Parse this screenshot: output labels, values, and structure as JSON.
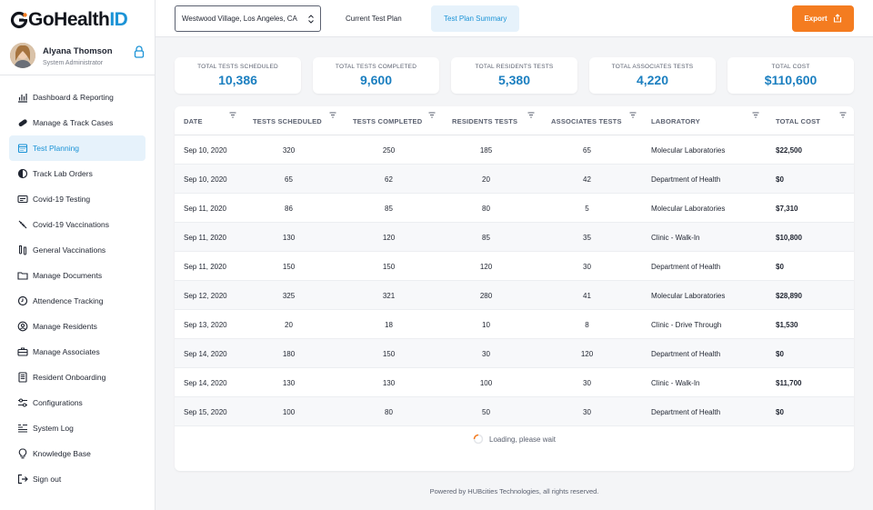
{
  "brand": {
    "logo_part1": "GoHealth",
    "logo_part2": "ID",
    "accent": "#1b93d6",
    "orange": "#f47c20"
  },
  "profile": {
    "name": "Alyana Thomson",
    "role": "System Administrator"
  },
  "sidebar": {
    "items": [
      {
        "label": "Dashboard & Reporting",
        "icon": "chart-icon"
      },
      {
        "label": "Manage & Track Cases",
        "icon": "pill-icon"
      },
      {
        "label": "Test Planning",
        "icon": "calendar-icon",
        "active": true
      },
      {
        "label": "Track Lab Orders",
        "icon": "half-circle-icon"
      },
      {
        "label": "Covid-19 Testing",
        "icon": "card-icon"
      },
      {
        "label": "Covid-19 Vaccinations",
        "icon": "syringe-icon"
      },
      {
        "label": "General Vaccinations",
        "icon": "vial-icon"
      },
      {
        "label": "Manage Documents",
        "icon": "folder-icon"
      },
      {
        "label": "Attendence Tracking",
        "icon": "clock-icon"
      },
      {
        "label": "Manage Residents",
        "icon": "user-circle-icon"
      },
      {
        "label": "Manage Associates",
        "icon": "briefcase-icon"
      },
      {
        "label": "Resident Onboarding",
        "icon": "document-icon"
      },
      {
        "label": "Configurations",
        "icon": "settings-icon"
      },
      {
        "label": "System Log",
        "icon": "log-icon"
      },
      {
        "label": "Knowledge Base",
        "icon": "bulb-icon"
      },
      {
        "label": "Sign out",
        "icon": "signout-icon"
      }
    ]
  },
  "topbar": {
    "location": "Westwood Village, Los Angeles, CA",
    "tabs": [
      "Current Test Plan",
      "Test Plan Summary"
    ],
    "export_label": "Export"
  },
  "stats": [
    {
      "label": "TOTAL TESTS SCHEDULED",
      "value": "10,386"
    },
    {
      "label": "TOTAL TESTS COMPLETED",
      "value": "9,600"
    },
    {
      "label": "TOTAL RESIDENTS TESTS",
      "value": "5,380"
    },
    {
      "label": "TOTAL ASSOCIATES TESTS",
      "value": "4,220"
    },
    {
      "label": "TOTAL COST",
      "value": "$110,600"
    }
  ],
  "table": {
    "headers": [
      "DATE",
      "TESTS SCHEDULED",
      "TESTS COMPLETED",
      "RESIDENTS TESTS",
      "ASSOCIATES TESTS",
      "LABORATORY",
      "TOTAL COST"
    ],
    "rows": [
      [
        "Sep 10, 2020",
        "320",
        "250",
        "185",
        "65",
        "Molecular Laboratories",
        "$22,500"
      ],
      [
        "Sep 10, 2020",
        "65",
        "62",
        "20",
        "42",
        "Department of Health",
        "$0"
      ],
      [
        "Sep 11, 2020",
        "86",
        "85",
        "80",
        "5",
        "Molecular Laboratories",
        "$7,310"
      ],
      [
        "Sep 11, 2020",
        "130",
        "120",
        "85",
        "35",
        "Clinic - Walk-In",
        "$10,800"
      ],
      [
        "Sep 11, 2020",
        "150",
        "150",
        "120",
        "30",
        "Department of Health",
        "$0"
      ],
      [
        "Sep 12, 2020",
        "325",
        "321",
        "280",
        "41",
        "Molecular Laboratories",
        "$28,890"
      ],
      [
        "Sep 13, 2020",
        "20",
        "18",
        "10",
        "8",
        "Clinic - Drive Through",
        "$1,530"
      ],
      [
        "Sep 14, 2020",
        "180",
        "150",
        "30",
        "120",
        "Department of Health",
        "$0"
      ],
      [
        "Sep 14, 2020",
        "130",
        "130",
        "100",
        "30",
        "Clinic - Walk-In",
        "$11,700"
      ],
      [
        "Sep 15, 2020",
        "100",
        "80",
        "50",
        "30",
        "Department of Health",
        "$0"
      ]
    ],
    "loading_text": "Loading, please wait"
  },
  "footer": "Powered by HUBcities Technologies, all rights reserved."
}
